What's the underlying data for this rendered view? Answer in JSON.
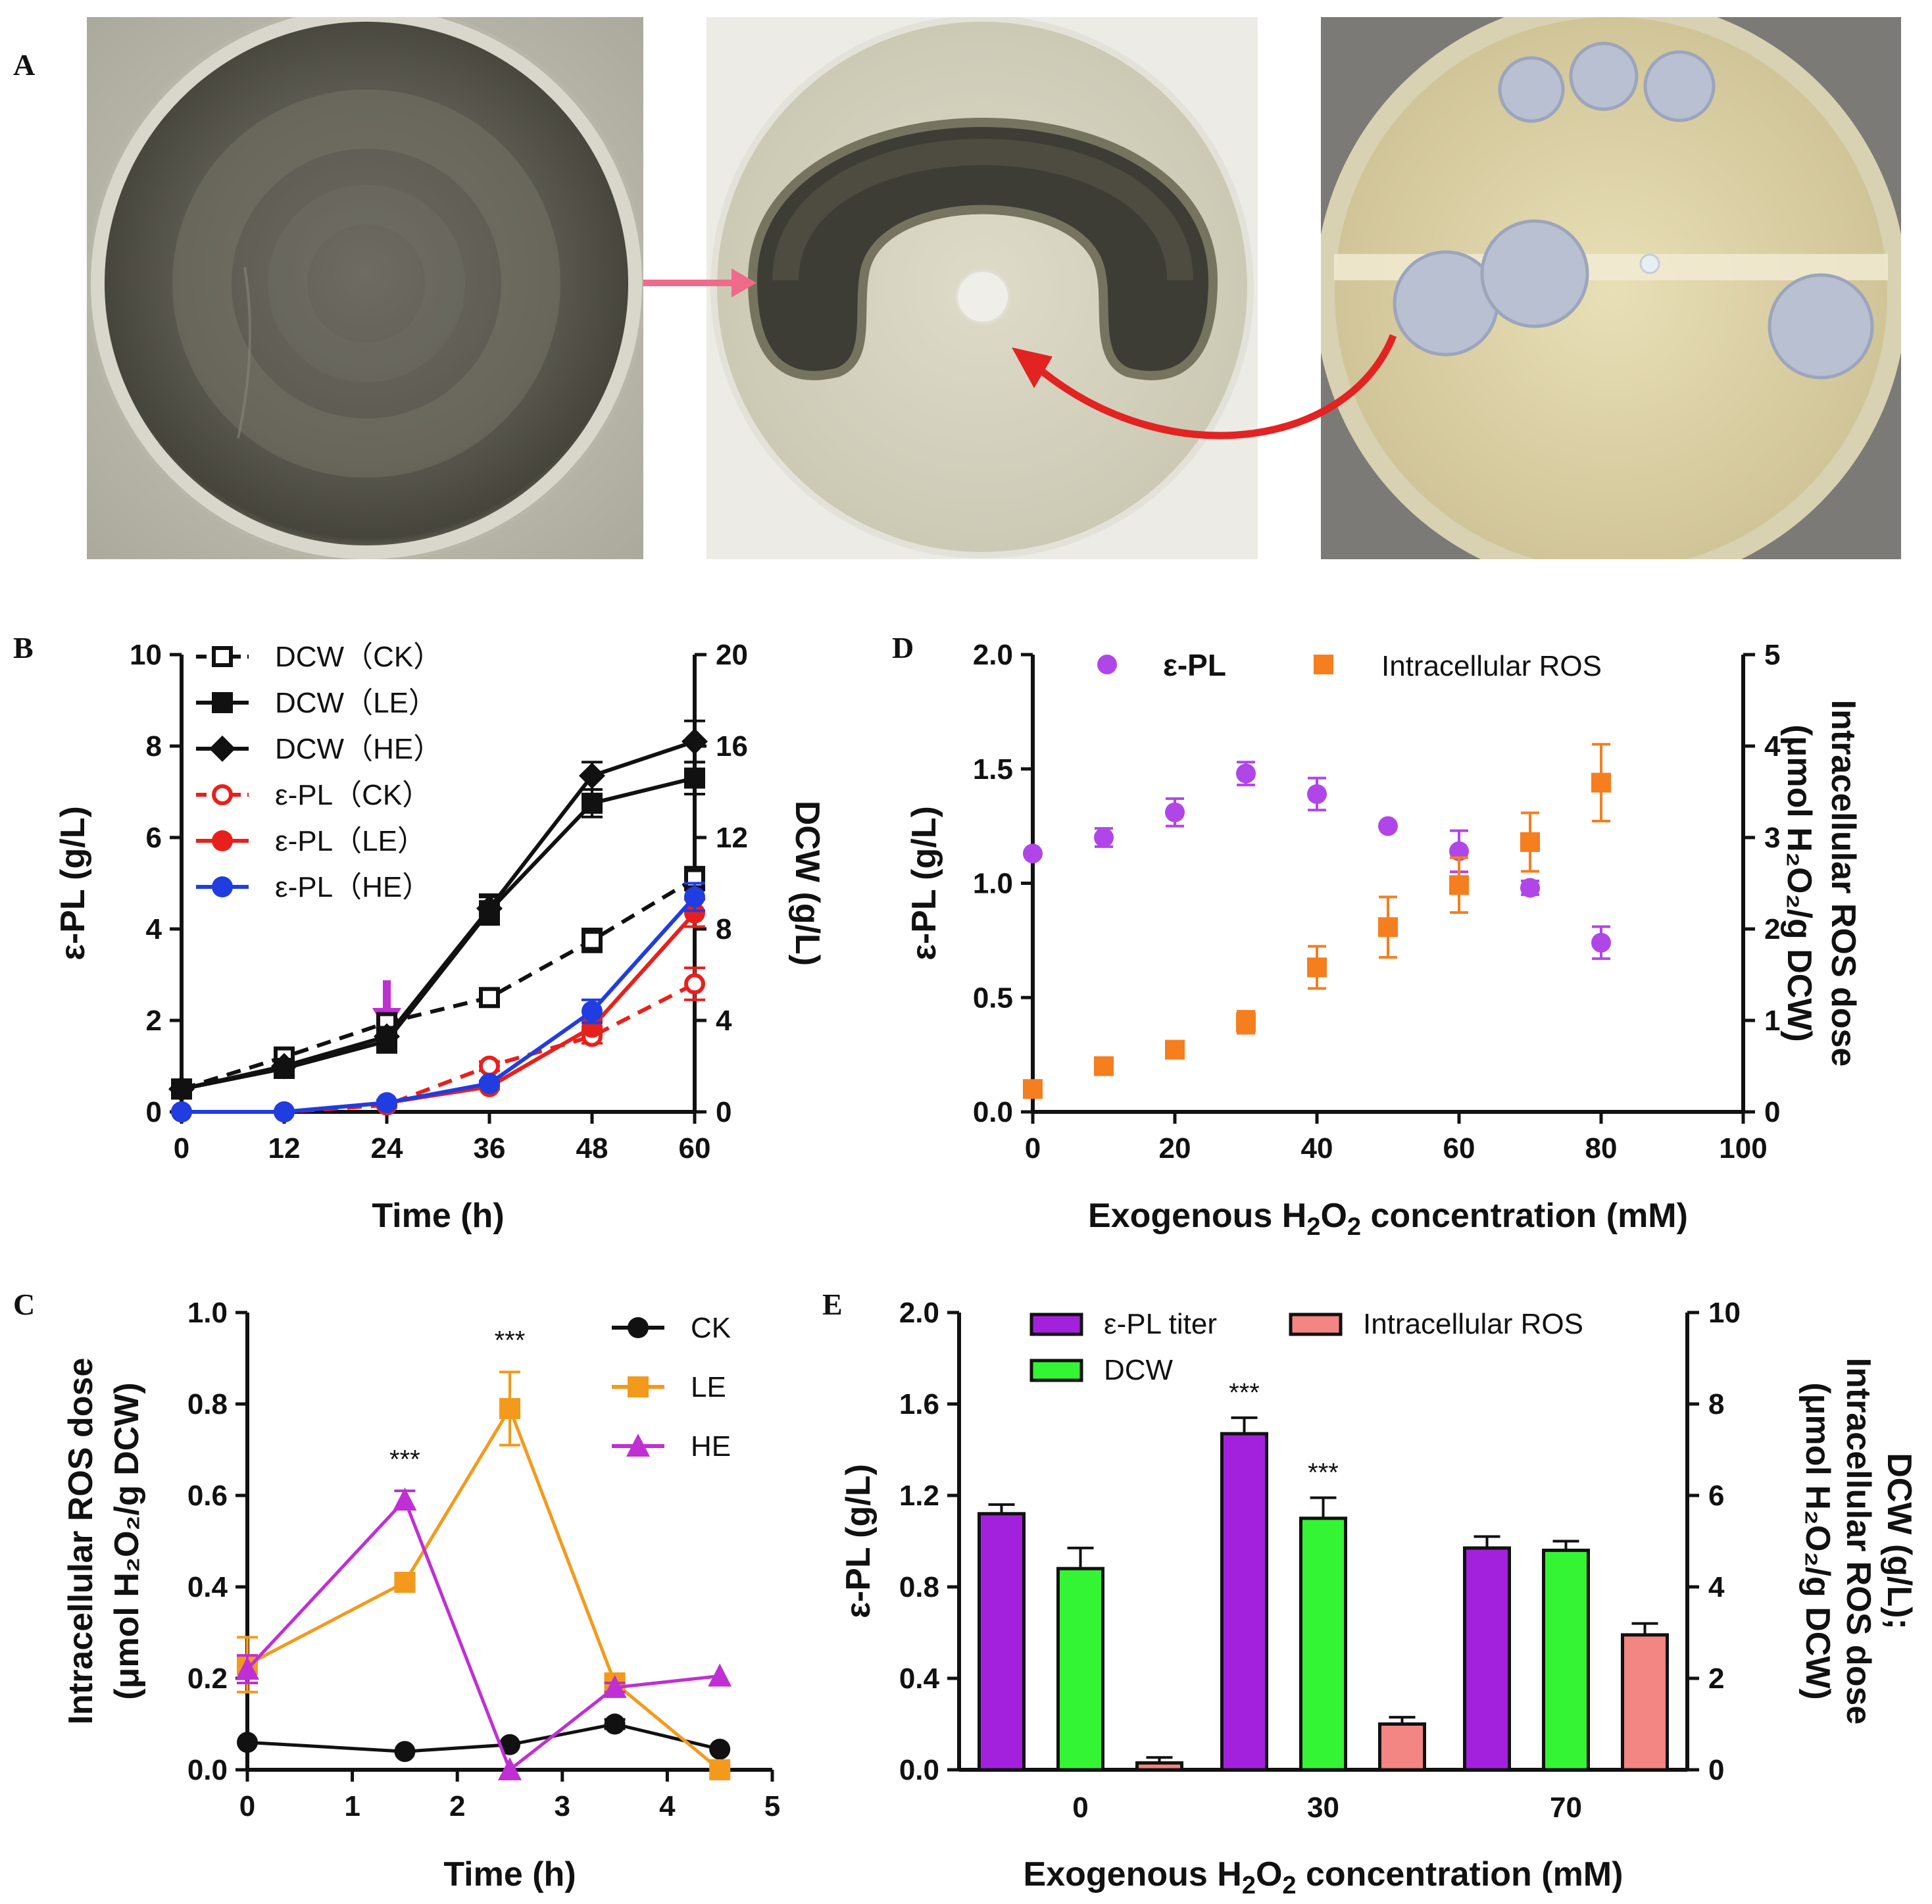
{
  "panels": {
    "A": "A",
    "B": "B",
    "C": "C",
    "D": "D",
    "E": "E"
  },
  "photos": {
    "description_names": [
      "mycelium-plate",
      "inhibition-plate",
      "colony-plate"
    ],
    "colors": {
      "mycelium": "#55544a",
      "agar": "#d8d6c2",
      "colony": "#b9c1d2",
      "arrow_pink": "#f06a8a",
      "arrow_red": "#e32222"
    }
  },
  "chart_data": [
    {
      "id": "B",
      "type": "line",
      "xlabel": "Time (h)",
      "ylabel_left": "ε-PL (g/L)",
      "ylabel_right": "DCW (g/L)",
      "x_ticks": [
        "0",
        "12",
        "24",
        "36",
        "48",
        "60"
      ],
      "xlim": [
        0,
        60
      ],
      "ylim_left": [
        0,
        10
      ],
      "yticks_left": [
        "0",
        "2",
        "4",
        "6",
        "8",
        "10"
      ],
      "ylim_right": [
        0,
        20
      ],
      "yticks_right": [
        "0",
        "4",
        "8",
        "12",
        "16",
        "20"
      ],
      "annotation": "arrow at 24 h",
      "series": [
        {
          "name": "DCW（CK）",
          "axis": "right",
          "style": "dashed",
          "marker": "open-square",
          "color": "#111111",
          "x": [
            0,
            12,
            24,
            36,
            48,
            60
          ],
          "values": [
            1.0,
            2.4,
            3.9,
            5.0,
            7.5,
            10.2
          ],
          "err": [
            0.1,
            0.2,
            0.3,
            0.3,
            0.5,
            0.5
          ]
        },
        {
          "name": "DCW（LE）",
          "axis": "right",
          "style": "solid",
          "marker": "square",
          "color": "#111111",
          "x": [
            0,
            12,
            24,
            36,
            48,
            60
          ],
          "values": [
            1.0,
            1.9,
            3.1,
            8.8,
            13.5,
            14.6
          ],
          "err": [
            0.1,
            0.3,
            0.5,
            0.6,
            0.6,
            0.7
          ]
        },
        {
          "name": "DCW（HE）",
          "axis": "right",
          "style": "solid",
          "marker": "diamond",
          "color": "#111111",
          "x": [
            0,
            12,
            24,
            36,
            48,
            60
          ],
          "values": [
            1.0,
            2.0,
            3.3,
            8.9,
            14.7,
            16.2
          ],
          "err": [
            0.1,
            0.2,
            0.4,
            0.6,
            0.6,
            0.9
          ]
        },
        {
          "name": "ε-PL（CK）",
          "axis": "left",
          "style": "dashed",
          "marker": "open-circle",
          "color": "#e8201c",
          "x": [
            0,
            12,
            24,
            36,
            48,
            60
          ],
          "values": [
            0.0,
            0.0,
            0.15,
            1.0,
            1.65,
            2.8
          ],
          "err": [
            0,
            0,
            0.05,
            0.1,
            0.15,
            0.35
          ]
        },
        {
          "name": "ε-PL（LE）",
          "axis": "left",
          "style": "solid",
          "marker": "circle",
          "color": "#e8201c",
          "x": [
            0,
            12,
            24,
            36,
            48,
            60
          ],
          "values": [
            0.0,
            0.0,
            0.2,
            0.55,
            1.85,
            4.35
          ],
          "err": [
            0,
            0,
            0.05,
            0.05,
            0.15,
            0.3
          ]
        },
        {
          "name": "ε-PL（HE）",
          "axis": "left",
          "style": "solid",
          "marker": "circle",
          "color": "#1f3de0",
          "x": [
            0,
            12,
            24,
            36,
            48,
            60
          ],
          "values": [
            0.0,
            0.0,
            0.2,
            0.62,
            2.2,
            4.7
          ],
          "err": [
            0,
            0,
            0.05,
            0.05,
            0.25,
            0.3
          ]
        }
      ]
    },
    {
      "id": "C",
      "type": "line",
      "xlabel": "Time (h)",
      "ylabel_line1": "Intracellular ROS dose",
      "ylabel_line2": "(μmol H₂O₂/g DCW)",
      "x_ticks": [
        "0",
        "1",
        "2",
        "3",
        "4",
        "5"
      ],
      "xlim": [
        0,
        5
      ],
      "ylim": [
        0,
        1.0
      ],
      "yticks": [
        "0.0",
        "0.2",
        "0.4",
        "0.6",
        "0.8",
        "1.0"
      ],
      "significance": [
        {
          "x": 1.5,
          "y": 0.66,
          "label": "***"
        },
        {
          "x": 2.5,
          "y": 0.92,
          "label": "***"
        }
      ],
      "series": [
        {
          "name": "CK",
          "marker": "circle",
          "color": "#111111",
          "x": [
            0,
            1.5,
            2.5,
            3.5,
            4.5
          ],
          "values": [
            0.06,
            0.04,
            0.055,
            0.1,
            0.045
          ],
          "err": [
            0,
            0,
            0,
            0.01,
            0
          ]
        },
        {
          "name": "LE",
          "marker": "square",
          "color": "#f39a1c",
          "x": [
            0,
            1.5,
            2.5,
            3.5,
            4.5
          ],
          "values": [
            0.23,
            0.41,
            0.79,
            0.19,
            0.0
          ],
          "err": [
            0.06,
            0.01,
            0.08,
            0.01,
            0
          ]
        },
        {
          "name": "HE",
          "marker": "triangle",
          "color": "#c02fd4",
          "x": [
            0,
            1.5,
            2.5,
            3.5,
            4.5
          ],
          "values": [
            0.22,
            0.59,
            0.0,
            0.18,
            0.205
          ],
          "err": [
            0.03,
            0.02,
            0,
            0.01,
            0
          ]
        }
      ]
    },
    {
      "id": "D",
      "type": "scatter",
      "xlabel_pre": "Exogenous H",
      "xlabel_sub1": "2",
      "xlabel_mid": "O",
      "xlabel_sub2": "2",
      "xlabel_post": " concentration (mM)",
      "ylabel_left": "ε-PL (g/L)",
      "ylabel_right_line1": "Intracellular ROS dose",
      "ylabel_right_line2": "(μmol H₂O₂/g DCW)",
      "x_ticks": [
        "0",
        "20",
        "40",
        "60",
        "80",
        "100"
      ],
      "xlim": [
        0,
        100
      ],
      "ylim_left": [
        0,
        2.0
      ],
      "yticks_left": [
        "0.0",
        "0.5",
        "1.0",
        "1.5",
        "2.0"
      ],
      "ylim_right": [
        0,
        5
      ],
      "yticks_right": [
        "0",
        "1",
        "2",
        "3",
        "4",
        "5"
      ],
      "series": [
        {
          "name": "ε-PL",
          "axis": "left",
          "marker": "circle",
          "color": "#b046e8",
          "x": [
            0,
            10,
            20,
            30,
            40,
            50,
            60,
            70,
            80
          ],
          "values": [
            1.13,
            1.2,
            1.31,
            1.48,
            1.39,
            1.25,
            1.14,
            0.98,
            0.74
          ],
          "err": [
            0.01,
            0.04,
            0.06,
            0.05,
            0.07,
            0.01,
            0.09,
            0.03,
            0.07
          ]
        },
        {
          "name": "Intracellular ROS",
          "axis": "right",
          "marker": "square",
          "color": "#f57e1f",
          "x": [
            0,
            10,
            20,
            30,
            40,
            50,
            60,
            70,
            80
          ],
          "values": [
            0.25,
            0.5,
            0.68,
            0.98,
            1.58,
            2.02,
            2.48,
            2.95,
            3.6
          ],
          "err": [
            0.02,
            0.03,
            0.06,
            0.12,
            0.23,
            0.33,
            0.3,
            0.32,
            0.42
          ]
        }
      ]
    },
    {
      "id": "E",
      "type": "bar",
      "xlabel_pre": "Exogenous H",
      "xlabel_sub1": "2",
      "xlabel_mid": "O",
      "xlabel_sub2": "2",
      "xlabel_post": " concentration (mM)",
      "ylabel_left": "ε-PL (g/L)",
      "ylabel_right_line1": "DCW (g/L);",
      "ylabel_right_line2": "Intracellular ROS dose",
      "ylabel_right_line3": "(μmol H₂O₂/g DCW)",
      "categories": [
        "0",
        "30",
        "70"
      ],
      "ylim_left": [
        0,
        2.0
      ],
      "yticks_left": [
        "0.0",
        "0.4",
        "0.8",
        "1.2",
        "1.6",
        "2.0"
      ],
      "ylim_right": [
        0,
        10
      ],
      "yticks_right": [
        "0",
        "2",
        "4",
        "6",
        "8",
        "10"
      ],
      "significance": [
        {
          "category": 1,
          "series": 0,
          "label": "***"
        },
        {
          "category": 1,
          "series": 1,
          "label": "***"
        }
      ],
      "series": [
        {
          "name": "ε-PL titer",
          "axis": "left",
          "color": "#a321dd",
          "values": [
            1.12,
            1.47,
            0.97
          ],
          "err": [
            0.04,
            0.07,
            0.05
          ]
        },
        {
          "name": "DCW",
          "axis": "left",
          "color": "#33f533",
          "values": [
            0.88,
            1.1,
            0.96
          ],
          "err": [
            0.09,
            0.09,
            0.04
          ]
        },
        {
          "name": "Intracellular ROS",
          "axis": "right",
          "color": "#f38583",
          "values": [
            0.15,
            1.0,
            2.95
          ],
          "err": [
            0.12,
            0.15,
            0.25
          ]
        }
      ]
    }
  ]
}
